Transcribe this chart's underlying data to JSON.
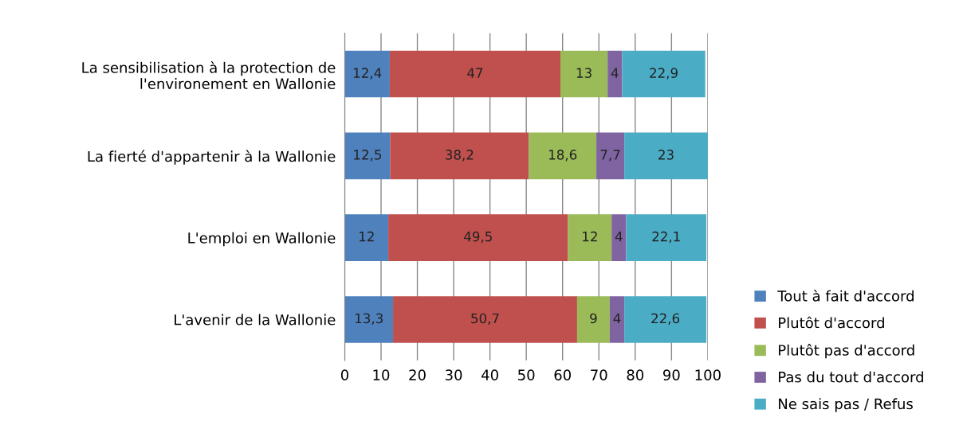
{
  "chart_data": {
    "type": "bar",
    "orientation": "horizontal",
    "stacked": true,
    "categories": [
      "La sensibilisation à la protection de l'environement en Wallonie",
      "La fierté d'appartenir à la Wallonie",
      "L'emploi en Wallonie",
      "L'avenir de la Wallonie"
    ],
    "series": [
      {
        "name": "Tout à fait d'accord",
        "color": "#4f81bd",
        "values": [
          12.4,
          12.5,
          12,
          13.3
        ],
        "value_labels": [
          "12,4",
          "12,5",
          "12",
          "13,3"
        ]
      },
      {
        "name": "Plutôt d'accord",
        "color": "#c0504d",
        "values": [
          47,
          38.2,
          49.5,
          50.7
        ],
        "value_labels": [
          "47",
          "38,2",
          "49,5",
          "50,7"
        ]
      },
      {
        "name": "Plutôt pas d'accord",
        "color": "#9bbb59",
        "values": [
          13,
          18.6,
          12,
          9
        ],
        "value_labels": [
          "13",
          "18,6",
          "12",
          "9"
        ]
      },
      {
        "name": "Pas du tout d'accord",
        "color": "#8064a2",
        "values": [
          4,
          7.7,
          4,
          4
        ],
        "value_labels": [
          "4",
          "7,7",
          "4",
          "4"
        ]
      },
      {
        "name": "Ne sais pas / Refus",
        "color": "#4bacc6",
        "values": [
          22.9,
          23,
          22.1,
          22.6
        ],
        "value_labels": [
          "22,9",
          "23",
          "22,1",
          "22,6"
        ]
      }
    ],
    "xlim": [
      0,
      100
    ],
    "xticks": [
      0,
      10,
      20,
      30,
      40,
      50,
      60,
      70,
      80,
      90,
      100
    ],
    "grid": "x",
    "legend": "bottom right"
  }
}
